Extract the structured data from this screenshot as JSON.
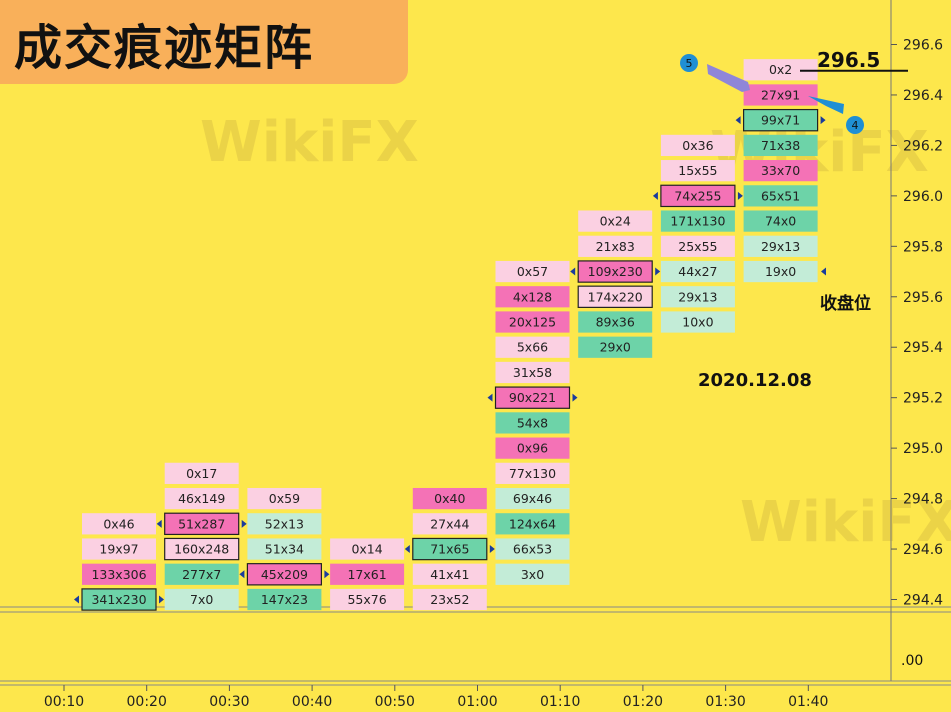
{
  "title": "成交痕迹矩阵",
  "watermark": "WikiFX",
  "date_label": "2020.12.08",
  "close_label": "收盘位",
  "price_marker": "296.5",
  "markers": [
    "5",
    "4"
  ],
  "lower_axis_tick": ".00",
  "colors": {
    "background": "#fde74c",
    "sell": "#f472b6",
    "buy": "#6dd3a8",
    "light_sell": "#fbd0e2",
    "light_buy": "#c3ecd7",
    "marker": "#1f8fd4"
  },
  "chart_data": {
    "type": "footprint",
    "x_ticks": [
      "00:10",
      "00:20",
      "00:30",
      "00:40",
      "00:50",
      "01:00",
      "01:10",
      "01:20",
      "01:30",
      "01:40"
    ],
    "y_ticks": [
      "296.6",
      "296.4",
      "296.2",
      "296.0",
      "295.8",
      "295.6",
      "295.4",
      "295.2",
      "295.0",
      "294.8",
      "294.6",
      "294.4"
    ],
    "ylim": [
      294.4,
      296.6
    ],
    "tick_size": 0.1,
    "bars": [
      {
        "time": "00:10",
        "cells": [
          {
            "price": 294.7,
            "label": "0x46",
            "c": "lp"
          },
          {
            "price": 294.6,
            "label": "19x97",
            "c": "lp"
          },
          {
            "price": 294.5,
            "label": "133x306",
            "c": "p"
          },
          {
            "price": 294.4,
            "label": "341x230",
            "c": "g",
            "box": true
          }
        ]
      },
      {
        "time": "00:20",
        "cells": [
          {
            "price": 294.9,
            "label": "0x17",
            "c": "lp"
          },
          {
            "price": 294.8,
            "label": "46x149",
            "c": "lp"
          },
          {
            "price": 294.7,
            "label": "51x287",
            "c": "p",
            "box": true
          },
          {
            "price": 294.6,
            "label": "160x248",
            "c": "lp",
            "box": true
          },
          {
            "price": 294.5,
            "label": "277x7",
            "c": "g"
          },
          {
            "price": 294.4,
            "label": "7x0",
            "c": "lg"
          }
        ]
      },
      {
        "time": "00:30",
        "cells": [
          {
            "price": 294.8,
            "label": "0x59",
            "c": "lp"
          },
          {
            "price": 294.7,
            "label": "52x13",
            "c": "lg"
          },
          {
            "price": 294.6,
            "label": "51x34",
            "c": "lg"
          },
          {
            "price": 294.5,
            "label": "45x209",
            "c": "p",
            "box": true
          },
          {
            "price": 294.4,
            "label": "147x23",
            "c": "g"
          }
        ]
      },
      {
        "time": "00:40",
        "cells": [
          {
            "price": 294.6,
            "label": "0x14",
            "c": "lp"
          },
          {
            "price": 294.5,
            "label": "17x61",
            "c": "p"
          },
          {
            "price": 294.4,
            "label": "55x76",
            "c": "lp"
          }
        ]
      },
      {
        "time": "00:50",
        "cells": [
          {
            "price": 294.8,
            "label": "0x40",
            "c": "p"
          },
          {
            "price": 294.7,
            "label": "27x44",
            "c": "lp"
          },
          {
            "price": 294.6,
            "label": "71x65",
            "c": "g",
            "box": true
          },
          {
            "price": 294.5,
            "label": "41x41",
            "c": "lp"
          },
          {
            "price": 294.4,
            "label": "23x52",
            "c": "lp"
          }
        ]
      },
      {
        "time": "01:00",
        "cells": [
          {
            "price": 295.7,
            "label": "0x57",
            "c": "lp"
          },
          {
            "price": 295.6,
            "label": "4x128",
            "c": "p"
          },
          {
            "price": 295.5,
            "label": "20x125",
            "c": "p"
          },
          {
            "price": 295.4,
            "label": "5x66",
            "c": "lp"
          },
          {
            "price": 295.3,
            "label": "31x58",
            "c": "lp"
          },
          {
            "price": 295.2,
            "label": "90x221",
            "c": "p",
            "box": true
          },
          {
            "price": 295.1,
            "label": "54x8",
            "c": "g"
          },
          {
            "price": 295.0,
            "label": "0x96",
            "c": "p"
          },
          {
            "price": 294.9,
            "label": "77x130",
            "c": "lp"
          },
          {
            "price": 294.8,
            "label": "69x46",
            "c": "lg"
          },
          {
            "price": 294.7,
            "label": "124x64",
            "c": "g"
          },
          {
            "price": 294.6,
            "label": "66x53",
            "c": "lg"
          },
          {
            "price": 294.5,
            "label": "3x0",
            "c": "lg"
          }
        ]
      },
      {
        "time": "01:10",
        "cells": [
          {
            "price": 295.9,
            "label": "0x24",
            "c": "lp"
          },
          {
            "price": 295.8,
            "label": "21x83",
            "c": "lp"
          },
          {
            "price": 295.7,
            "label": "109x230",
            "c": "p",
            "box": true
          },
          {
            "price": 295.6,
            "label": "174x220",
            "c": "lp",
            "box": true
          },
          {
            "price": 295.5,
            "label": "89x36",
            "c": "g"
          },
          {
            "price": 295.4,
            "label": "29x0",
            "c": "g"
          }
        ]
      },
      {
        "time": "01:20",
        "cells": [
          {
            "price": 296.2,
            "label": "0x36",
            "c": "lp"
          },
          {
            "price": 296.1,
            "label": "15x55",
            "c": "lp"
          },
          {
            "price": 296.0,
            "label": "74x255",
            "c": "p",
            "box": true
          },
          {
            "price": 295.9,
            "label": "171x130",
            "c": "g"
          },
          {
            "price": 295.8,
            "label": "25x55",
            "c": "lp"
          },
          {
            "price": 295.7,
            "label": "44x27",
            "c": "lg"
          },
          {
            "price": 295.6,
            "label": "29x13",
            "c": "lg"
          },
          {
            "price": 295.5,
            "label": "10x0",
            "c": "lg"
          }
        ]
      },
      {
        "time": "01:30",
        "cells": [
          {
            "price": 296.5,
            "label": "0x2",
            "c": "lp"
          },
          {
            "price": 296.4,
            "label": "27x91",
            "c": "p"
          },
          {
            "price": 296.3,
            "label": "99x71",
            "c": "g",
            "box": true
          },
          {
            "price": 296.2,
            "label": "71x38",
            "c": "g"
          },
          {
            "price": 296.1,
            "label": "33x70",
            "c": "p"
          },
          {
            "price": 296.0,
            "label": "65x51",
            "c": "g"
          },
          {
            "price": 295.9,
            "label": "74x0",
            "c": "g"
          },
          {
            "price": 295.8,
            "label": "29x13",
            "c": "lg"
          },
          {
            "price": 295.7,
            "label": "19x0",
            "c": "lg"
          }
        ]
      }
    ]
  }
}
